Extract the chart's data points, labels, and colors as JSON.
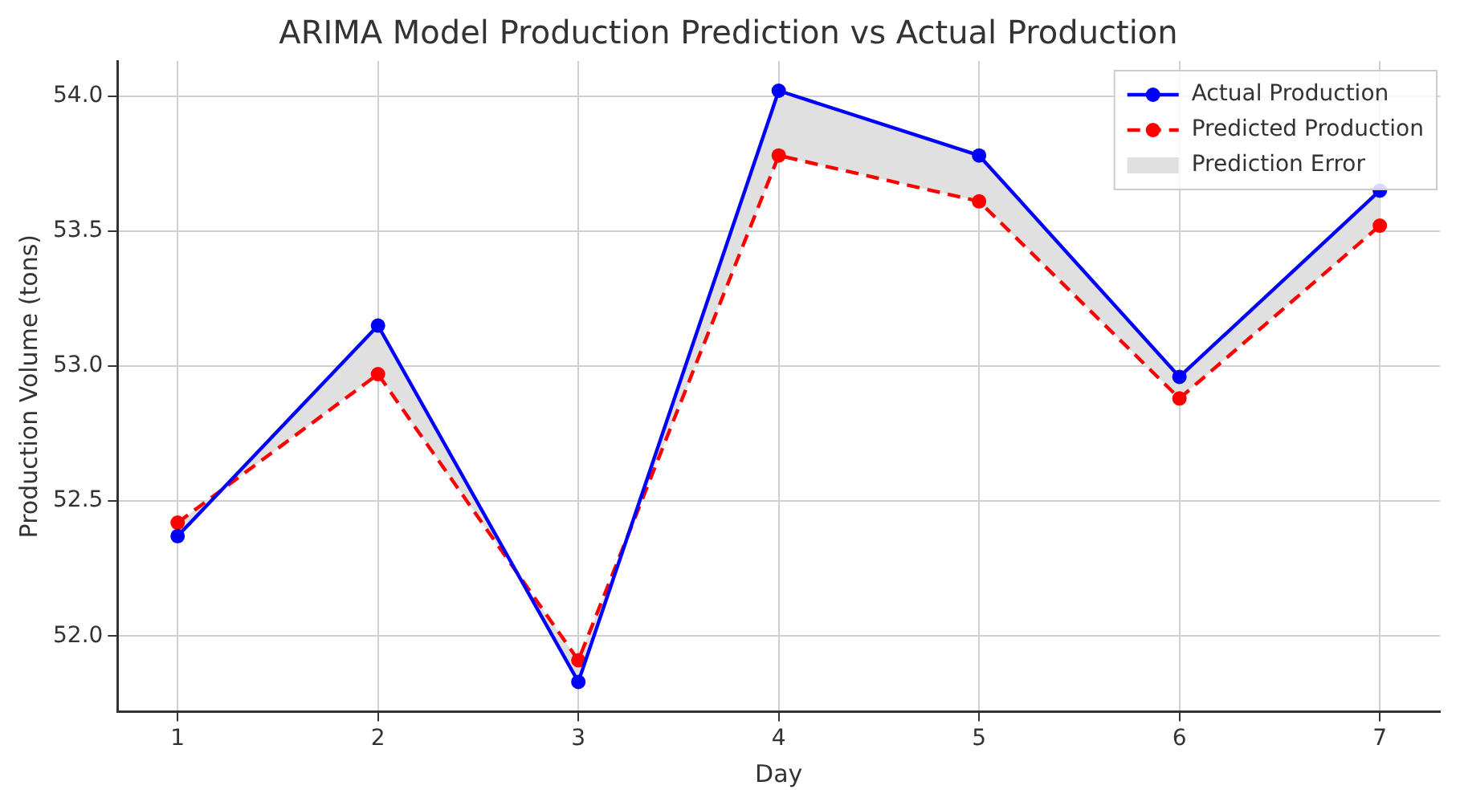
{
  "chart_data": {
    "type": "line",
    "title": "ARIMA Model Production Prediction vs Actual Production",
    "xlabel": "Day",
    "ylabel": "Production Volume (tons)",
    "x": [
      1,
      2,
      3,
      4,
      5,
      6,
      7
    ],
    "xlim": [
      0.7,
      7.3
    ],
    "xticks": [
      1,
      2,
      3,
      4,
      5,
      6,
      7
    ],
    "ylim": [
      51.72,
      54.13
    ],
    "yticks": [
      {
        "value": 52,
        "label": "52.0"
      },
      52.5,
      {
        "value": 53,
        "label": "53.0"
      },
      53.5,
      {
        "value": 54,
        "label": "54.0"
      }
    ],
    "series": [
      {
        "name": "Actual Production",
        "color": "#0000ff",
        "values": [
          52.37,
          53.15,
          51.83,
          54.02,
          53.78,
          52.96,
          53.65
        ],
        "marker": "circle",
        "line_style": "solid",
        "lower": [
          52.42,
          52.97,
          51.91,
          53.78,
          53.61,
          52.88,
          53.52
        ],
        "upper": [
          52.37,
          53.15,
          51.83,
          54.02,
          53.78,
          52.96,
          53.65
        ]
      },
      {
        "name": "Predicted Production",
        "color": "#ff0000",
        "values": [
          52.42,
          52.97,
          51.91,
          53.78,
          53.61,
          52.88,
          53.52
        ],
        "marker": "circle",
        "line_style": "dashed"
      },
      {
        "name": "Prediction Error",
        "type": "area",
        "color": "#e0e0e0",
        "values": [
          null,
          null,
          null,
          null,
          null,
          null,
          null
        ]
      }
    ],
    "grid": true,
    "legend": "top right"
  }
}
